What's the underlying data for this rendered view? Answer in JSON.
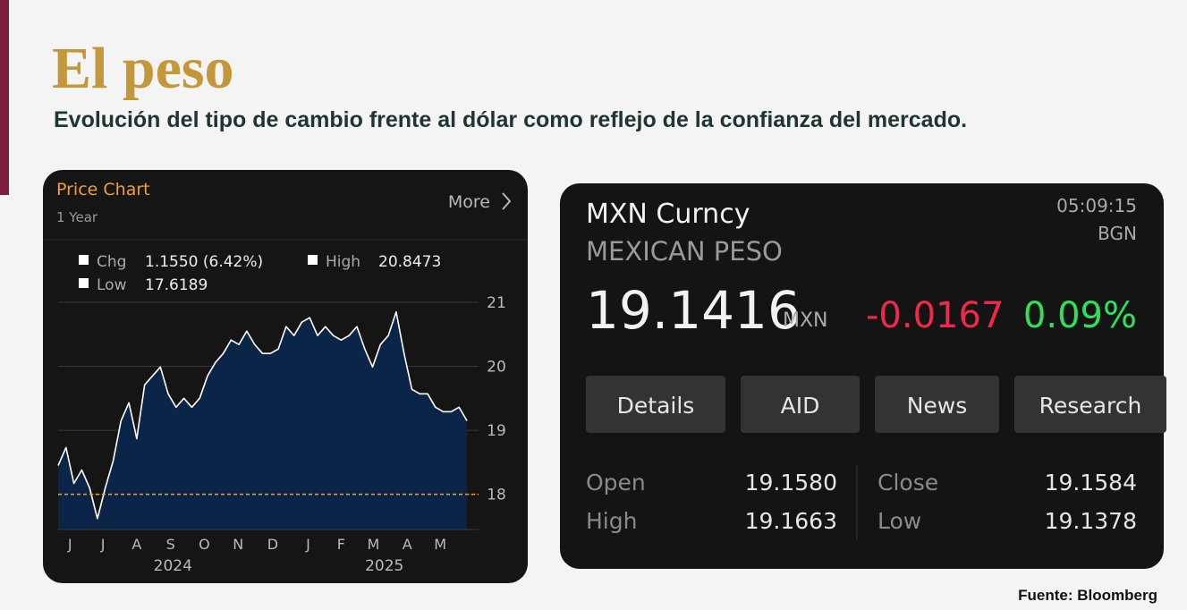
{
  "header": {
    "title": "El peso",
    "subtitle": "Evolución del tipo de cambio frente al dólar como reflejo de la confianza del mercado."
  },
  "chart_data": {
    "type": "area",
    "title": "Price Chart",
    "subtitle": "1 Year",
    "more": "More",
    "legend": [
      {
        "name": "Chg",
        "text": "1.1550 (6.42%)"
      },
      {
        "name": "High",
        "text": "20.8473"
      },
      {
        "name": "Low",
        "text": "17.6189"
      }
    ],
    "values": [
      18.45,
      18.73,
      18.17,
      18.38,
      18.1,
      17.62,
      18.1,
      18.52,
      19.15,
      19.43,
      18.87,
      19.71,
      19.85,
      19.99,
      19.57,
      19.36,
      19.5,
      19.36,
      19.5,
      19.85,
      20.06,
      20.2,
      20.41,
      20.34,
      20.55,
      20.34,
      20.2,
      20.2,
      20.27,
      20.62,
      20.48,
      20.69,
      20.76,
      20.48,
      20.62,
      20.48,
      20.41,
      20.48,
      20.62,
      20.27,
      19.99,
      20.34,
      20.48,
      20.85,
      20.2,
      19.64,
      19.57,
      19.57,
      19.36,
      19.29,
      19.29,
      19.36,
      19.15
    ],
    "xlim": [
      0,
      52
    ],
    "xticks": [
      {
        "value": 1.5,
        "label": "J"
      },
      {
        "value": 5.7,
        "label": "J"
      },
      {
        "value": 10,
        "label": "A"
      },
      {
        "value": 14.3,
        "label": "S"
      },
      {
        "value": 18.6,
        "label": "O"
      },
      {
        "value": 22.9,
        "label": "N"
      },
      {
        "value": 27.3,
        "label": "D"
      },
      {
        "value": 31.8,
        "label": "J"
      },
      {
        "value": 36,
        "label": "F"
      },
      {
        "value": 40.1,
        "label": "M"
      },
      {
        "value": 44.4,
        "label": "A"
      },
      {
        "value": 48.6,
        "label": "M"
      }
    ],
    "years": [
      {
        "value": 14.6,
        "label": "2024"
      },
      {
        "value": 41.5,
        "label": "2025"
      }
    ],
    "ylim": [
      17.45,
      21
    ],
    "yticks": [
      18,
      19,
      20,
      21
    ],
    "reference_line": 18,
    "grid": true,
    "color": "#ffffff",
    "fill": "#0b2548"
  },
  "quote": {
    "ticker": "MXN Curncy",
    "name": "MEXICAN PESO",
    "time": "05:09:15",
    "source": "BGN",
    "price": "19.1416",
    "currency": "MXN",
    "change": "-0.0167",
    "change_pct": "0.09%",
    "buttons": [
      "Details",
      "AID",
      "News",
      "Research"
    ],
    "stats": [
      [
        "Open",
        "19.1580"
      ],
      [
        "High",
        "19.1663"
      ],
      [
        "Close",
        "19.1584"
      ],
      [
        "Low",
        "19.1378"
      ]
    ]
  },
  "footer": "Fuente: Bloomberg"
}
